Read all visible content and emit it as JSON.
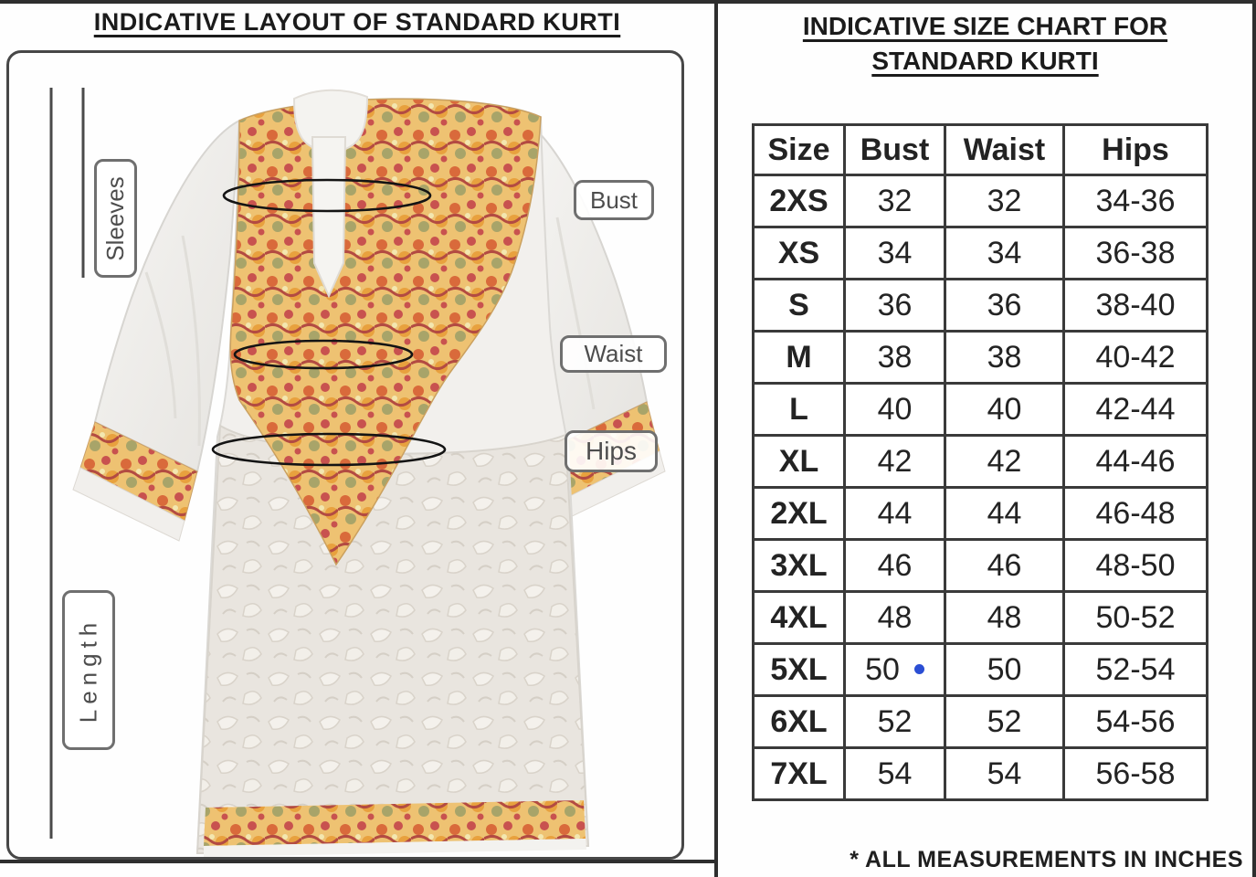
{
  "left_panel": {
    "title": "INDICATIVE LAYOUT OF STANDARD KURTI",
    "illustration": "standard-kurti-front-photo",
    "measure_labels": {
      "sleeves": "Sleeves",
      "length": "Length",
      "bust": "Bust",
      "waist": "Waist",
      "hips": "Hips"
    }
  },
  "right_panel": {
    "title_line1": "INDICATIVE SIZE CHART FOR",
    "title_line2": "STANDARD KURTI",
    "footnote": "* ALL MEASUREMENTS IN INCHES"
  },
  "chart_data": {
    "type": "table",
    "title": "INDICATIVE SIZE CHART FOR STANDARD KURTI",
    "columns": [
      "Size",
      "Bust",
      "Waist",
      "Hips"
    ],
    "rows": [
      [
        "2XS",
        "32",
        "32",
        "34-36"
      ],
      [
        "XS",
        "34",
        "34",
        "36-38"
      ],
      [
        "S",
        "36",
        "36",
        "38-40"
      ],
      [
        "M",
        "38",
        "38",
        "40-42"
      ],
      [
        "L",
        "40",
        "40",
        "42-44"
      ],
      [
        "XL",
        "42",
        "42",
        "44-46"
      ],
      [
        "2XL",
        "44",
        "44",
        "46-48"
      ],
      [
        "3XL",
        "46",
        "46",
        "48-50"
      ],
      [
        "4XL",
        "48",
        "48",
        "50-52"
      ],
      [
        "5XL",
        "50",
        "50",
        "52-54"
      ],
      [
        "6XL",
        "52",
        "52",
        "54-56"
      ],
      [
        "7XL",
        "54",
        "54",
        "56-58"
      ]
    ],
    "units": "inches"
  },
  "annotations": {
    "blue_dot": {
      "row_index": 9,
      "col_index": 1,
      "color": "#2b4ed4"
    }
  },
  "colors": {
    "frame_line": "#2e2e2e",
    "table_border": "#3a3a3a",
    "label_border": "#6f6f6f",
    "label_text": "#4d4d4d",
    "measure_ellipse": "#141414",
    "print_base": "#eec272",
    "print_accent_orange": "#d96a3b",
    "print_accent_red": "#c8524f",
    "print_accent_olive": "#a8a469",
    "skirt_base": "#e9e5df"
  }
}
